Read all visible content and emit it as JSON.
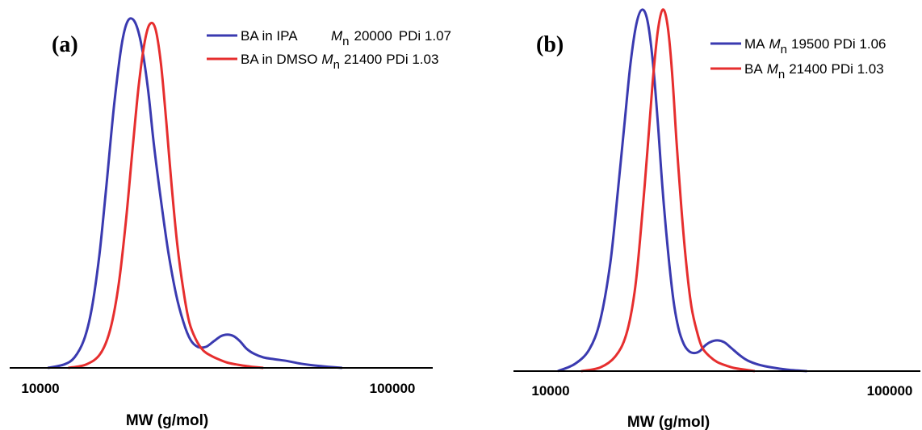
{
  "chart_data": [
    {
      "panel": "(a)",
      "type": "line",
      "xscale": "log",
      "xlim": [
        8000,
        130000
      ],
      "ylim": [
        0,
        1.0
      ],
      "xticks": [
        10000,
        100000
      ],
      "xtick_labels": [
        "10000",
        "100000"
      ],
      "xlabel": "MW (g/mol)",
      "ylabel": "",
      "grid": false,
      "legend_position": "top-right",
      "series": [
        {
          "name": "BA in IPA",
          "legend_parts": [
            "BA in IPA",
            "M",
            "n",
            "20000",
            "PDi 1.07"
          ],
          "color": "#3a3ab0",
          "x": [
            10500,
            11700,
            12500,
            13300,
            14000,
            14700,
            15400,
            16200,
            17000,
            17700,
            18500,
            19300,
            20200,
            21000,
            22000,
            23100,
            24300,
            25500,
            26700,
            28000,
            29500,
            31000,
            32500,
            34000,
            35500,
            37000,
            38500,
            40500,
            43000,
            46000,
            50000,
            55000,
            60000,
            66000,
            72000
          ],
          "y": [
            0.0,
            0.01,
            0.03,
            0.08,
            0.17,
            0.32,
            0.52,
            0.75,
            0.92,
            0.99,
            0.99,
            0.93,
            0.8,
            0.64,
            0.48,
            0.33,
            0.21,
            0.13,
            0.08,
            0.06,
            0.06,
            0.075,
            0.09,
            0.095,
            0.09,
            0.075,
            0.055,
            0.04,
            0.03,
            0.025,
            0.02,
            0.012,
            0.007,
            0.003,
            0.0
          ]
        },
        {
          "name": "BA in DMSO",
          "legend_parts": [
            "BA in DMSO",
            "M",
            "n",
            "21400",
            "PDi 1.03"
          ],
          "color": "#e62e2e",
          "x": [
            12000,
            13500,
            14800,
            15800,
            16700,
            17500,
            18300,
            19000,
            19700,
            20400,
            21200,
            22000,
            22800,
            23600,
            24500,
            25500,
            26500,
            27700,
            29000,
            30500,
            32000,
            34000,
            36000,
            38000,
            40000,
            43000
          ],
          "y": [
            0.0,
            0.01,
            0.04,
            0.11,
            0.24,
            0.42,
            0.63,
            0.8,
            0.92,
            0.98,
            0.97,
            0.87,
            0.7,
            0.52,
            0.35,
            0.22,
            0.13,
            0.08,
            0.05,
            0.035,
            0.025,
            0.015,
            0.01,
            0.006,
            0.003,
            0.0
          ]
        }
      ]
    },
    {
      "panel": "(b)",
      "type": "line",
      "xscale": "log",
      "xlim": [
        7000,
        130000
      ],
      "ylim": [
        0,
        1.0
      ],
      "xticks": [
        10000,
        100000
      ],
      "xtick_labels": [
        "10000",
        "100000"
      ],
      "xlabel": "MW (g/mol)",
      "ylabel": "",
      "grid": false,
      "legend_position": "top-right",
      "series": [
        {
          "name": "MA",
          "legend_parts": [
            "MA",
            "M",
            "n",
            "19500",
            "PDi 1.06"
          ],
          "color": "#3a3ab0",
          "x": [
            10500,
            11800,
            13000,
            14000,
            15000,
            15800,
            16500,
            17200,
            17900,
            18600,
            19300,
            20000,
            20700,
            21400,
            22200,
            23000,
            23800,
            24700,
            25600,
            26500,
            27500,
            28500,
            29500,
            31000,
            32500,
            34000,
            36000,
            38000,
            41000,
            45000,
            50000,
            57000
          ],
          "y": [
            0.0,
            0.02,
            0.06,
            0.14,
            0.3,
            0.5,
            0.68,
            0.85,
            0.96,
            1.0,
            0.97,
            0.86,
            0.69,
            0.5,
            0.33,
            0.2,
            0.12,
            0.075,
            0.055,
            0.05,
            0.055,
            0.07,
            0.08,
            0.085,
            0.08,
            0.065,
            0.045,
            0.03,
            0.018,
            0.01,
            0.004,
            0.0
          ]
        },
        {
          "name": "BA",
          "legend_parts": [
            "BA",
            "M",
            "n",
            "21400",
            "PDi 1.03"
          ],
          "color": "#e62e2e",
          "x": [
            12300,
            14000,
            15500,
            16700,
            17700,
            18500,
            19300,
            20000,
            20700,
            21400,
            22100,
            22800,
            23500,
            24300,
            25100,
            26000,
            27000,
            28000,
            29500,
            31000,
            33000,
            35000,
            37500,
            40000
          ],
          "y": [
            0.0,
            0.01,
            0.04,
            0.1,
            0.22,
            0.4,
            0.61,
            0.8,
            0.94,
            1.0,
            0.96,
            0.83,
            0.64,
            0.45,
            0.3,
            0.18,
            0.11,
            0.065,
            0.04,
            0.025,
            0.015,
            0.008,
            0.004,
            0.0
          ]
        }
      ]
    }
  ]
}
